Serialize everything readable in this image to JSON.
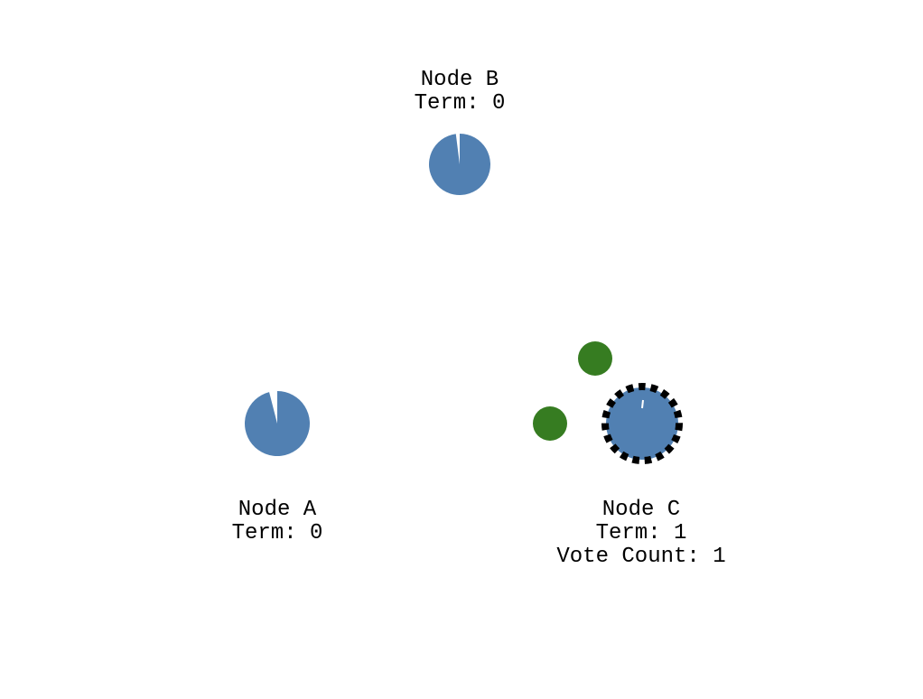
{
  "colors": {
    "background": "#ffffff",
    "node_fill": "#5180b2",
    "timer_notch": "#ffffff",
    "message": "#367c21",
    "candidate_ring": "#000000",
    "text": "#000000"
  },
  "nodes": [
    {
      "id": "A",
      "name": "Node A",
      "term": "Term: 0",
      "vote_count": null,
      "state": "follower",
      "election_timer_remaining": 0.96
    },
    {
      "id": "B",
      "name": "Node B",
      "term": "Term: 0",
      "vote_count": null,
      "state": "follower",
      "election_timer_remaining": 0.98
    },
    {
      "id": "C",
      "name": "Node C",
      "term": "Term: 1",
      "vote_count": "Vote Count: 1",
      "state": "candidate",
      "election_timer_remaining": 0.99
    }
  ],
  "messages": [
    {
      "type": "request-vote",
      "from": "C",
      "to": "A"
    },
    {
      "type": "request-vote",
      "from": "C",
      "to": "B"
    }
  ]
}
